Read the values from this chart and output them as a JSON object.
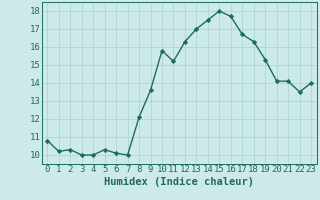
{
  "x": [
    0,
    1,
    2,
    3,
    4,
    5,
    6,
    7,
    8,
    9,
    10,
    11,
    12,
    13,
    14,
    15,
    16,
    17,
    18,
    19,
    20,
    21,
    22,
    23
  ],
  "y": [
    10.8,
    10.2,
    10.3,
    10.0,
    10.0,
    10.3,
    10.1,
    10.0,
    12.1,
    13.6,
    15.8,
    15.2,
    16.3,
    17.0,
    17.5,
    18.0,
    17.7,
    16.7,
    16.3,
    15.3,
    14.1,
    14.1,
    13.5,
    14.0
  ],
  "xlabel": "Humidex (Indice chaleur)",
  "xlim": [
    -0.5,
    23.5
  ],
  "ylim": [
    9.5,
    18.5
  ],
  "yticks": [
    10,
    11,
    12,
    13,
    14,
    15,
    16,
    17,
    18
  ],
  "xticks": [
    0,
    1,
    2,
    3,
    4,
    5,
    6,
    7,
    8,
    9,
    10,
    11,
    12,
    13,
    14,
    15,
    16,
    17,
    18,
    19,
    20,
    21,
    22,
    23
  ],
  "line_color": "#1d6b60",
  "marker": "D",
  "marker_size": 2.2,
  "line_width": 1.0,
  "bg_color": "#cdeaea",
  "grid_color": "#b0d4d4",
  "label_fontsize": 7.5,
  "tick_fontsize": 6.5
}
